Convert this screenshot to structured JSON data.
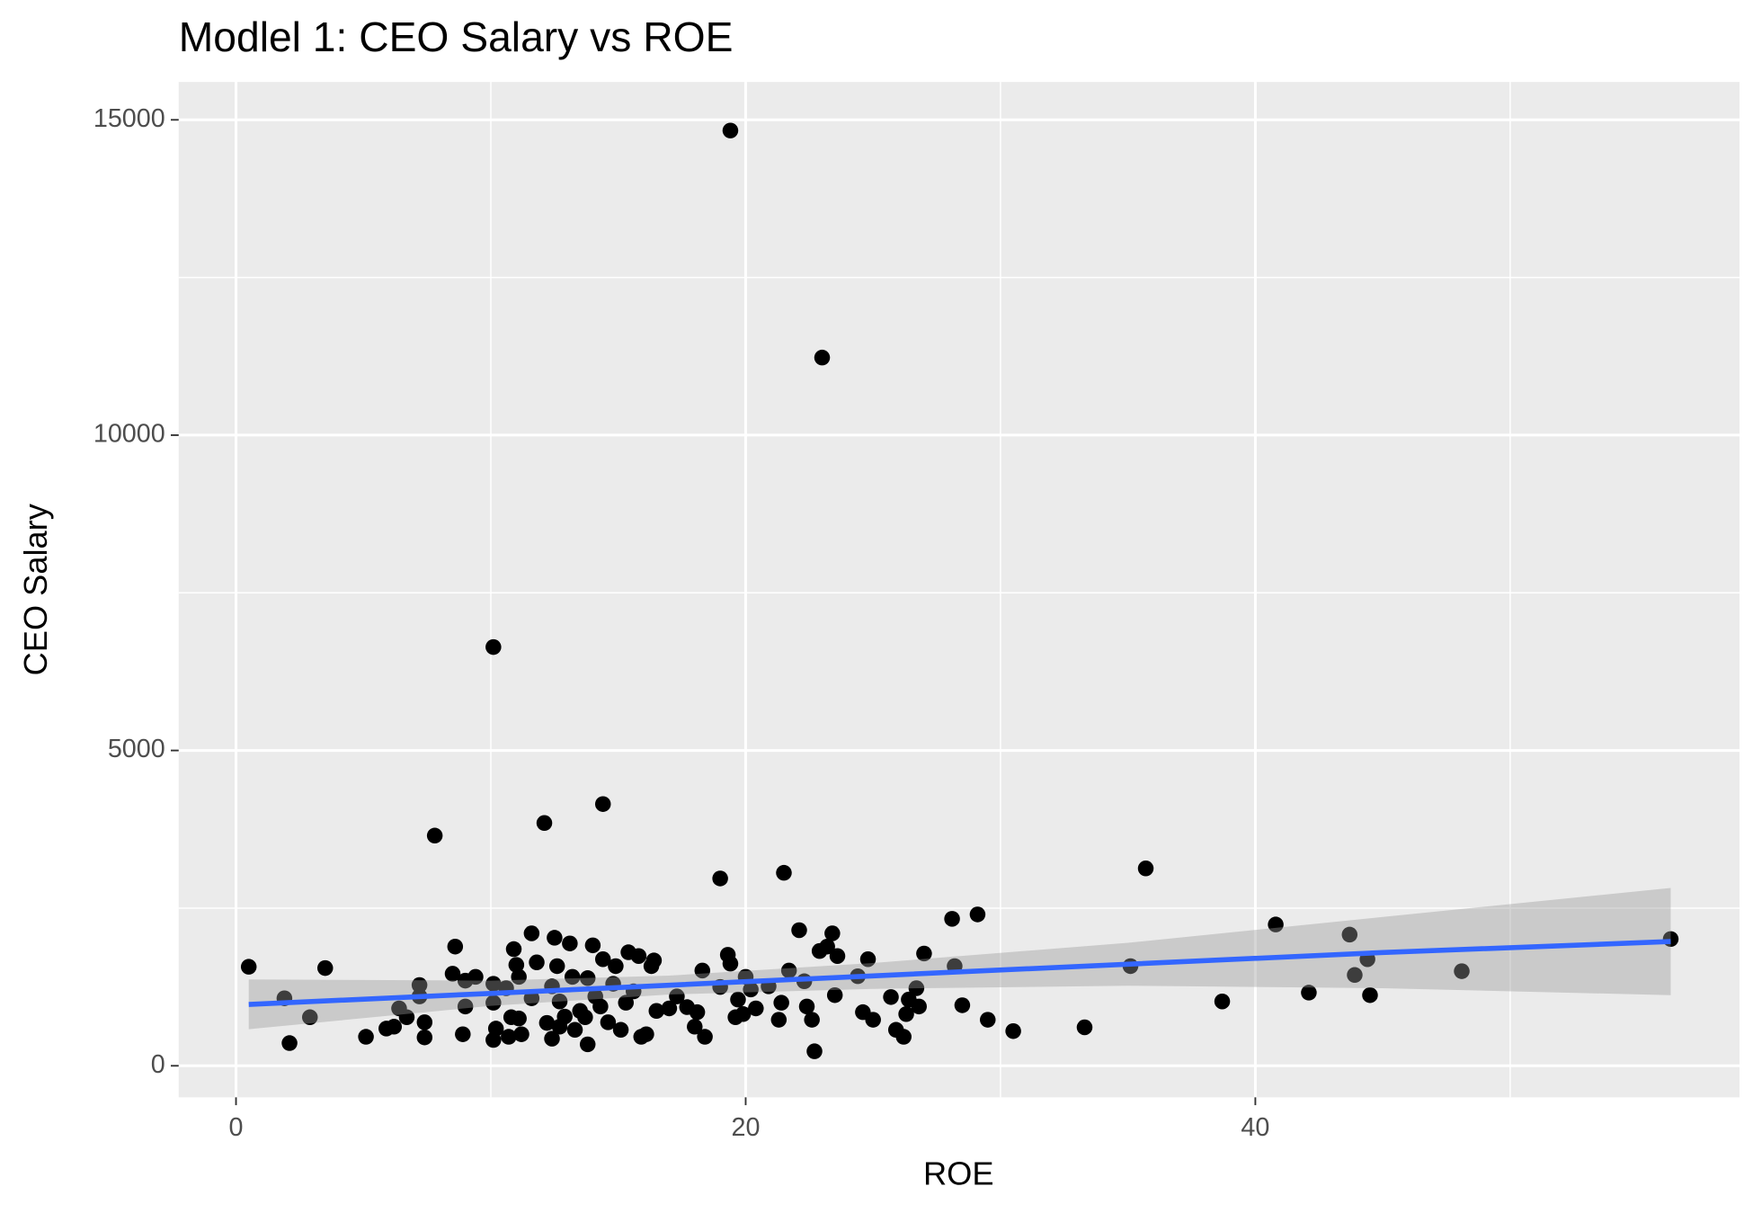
{
  "chart_data": {
    "type": "scatter",
    "title": "Modlel 1: CEO Salary vs ROE",
    "x_label": "ROE",
    "y_label": "CEO Salary",
    "xlim": [
      -2.25,
      59.0
    ],
    "ylim": [
      -500,
      15600
    ],
    "xticks": [
      0,
      20,
      40
    ],
    "yticks": [
      0,
      5000,
      10000,
      15000
    ],
    "grid": true,
    "color": "#000000",
    "x": [
      0.5,
      1.9,
      2.1,
      2.9,
      3.5,
      5.1,
      5.9,
      6.2,
      6.4,
      6.7,
      7.2,
      7.2,
      7.4,
      7.4,
      7.8,
      8.5,
      8.6,
      8.9,
      9.0,
      9.0,
      9.4,
      10.1,
      10.1,
      10.1,
      10.1,
      10.2,
      10.6,
      10.7,
      10.8,
      10.9,
      11.0,
      11.1,
      11.1,
      11.2,
      11.6,
      11.6,
      11.8,
      12.1,
      12.2,
      12.4,
      12.4,
      12.5,
      12.6,
      12.7,
      12.7,
      12.9,
      13.1,
      13.2,
      13.3,
      13.5,
      13.7,
      13.8,
      13.8,
      14.0,
      14.1,
      14.3,
      14.4,
      14.4,
      14.6,
      14.8,
      14.9,
      15.1,
      15.3,
      15.4,
      15.6,
      15.8,
      15.9,
      16.1,
      16.3,
      16.4,
      16.5,
      17.0,
      17.3,
      17.7,
      18.0,
      18.1,
      18.3,
      18.4,
      19.0,
      19.0,
      19.3,
      19.4,
      19.4,
      19.6,
      19.7,
      19.9,
      20.0,
      20.2,
      20.4,
      20.9,
      21.3,
      21.4,
      21.5,
      21.7,
      22.1,
      22.3,
      22.4,
      22.6,
      22.7,
      22.9,
      23.0,
      23.2,
      23.4,
      23.5,
      23.6,
      24.4,
      24.6,
      24.8,
      25.0,
      25.7,
      25.9,
      26.2,
      26.3,
      26.4,
      26.7,
      26.8,
      27.0,
      28.1,
      28.2,
      28.5,
      29.1,
      29.5,
      30.5,
      33.3,
      35.1,
      35.7,
      38.7,
      40.8,
      42.1,
      43.7,
      43.9,
      44.4,
      44.5,
      48.1,
      56.3
    ],
    "values": [
      1570,
      1070,
      360,
      770,
      1550,
      460,
      590,
      620,
      910,
      770,
      1280,
      1100,
      690,
      450,
      3650,
      1460,
      1890,
      500,
      1350,
      940,
      1410,
      1300,
      1000,
      6640,
      410,
      590,
      1230,
      460,
      770,
      1850,
      1600,
      1410,
      750,
      500,
      2100,
      1070,
      1640,
      3850,
      680,
      1260,
      430,
      2030,
      1580,
      1020,
      620,
      780,
      1940,
      1410,
      570,
      870,
      770,
      340,
      1390,
      1910,
      1100,
      940,
      4150,
      1690,
      690,
      1300,
      1580,
      570,
      1000,
      1800,
      1180,
      1740,
      460,
      500,
      1580,
      1670,
      870,
      910,
      1100,
      930,
      620,
      850,
      1510,
      460,
      2970,
      1250,
      1760,
      14830,
      1620,
      770,
      1050,
      820,
      1410,
      1210,
      910,
      1260,
      730,
      1000,
      3060,
      1510,
      2150,
      1340,
      940,
      730,
      230,
      1820,
      11230,
      1890,
      2100,
      1120,
      1740,
      1420,
      850,
      1690,
      730,
      1090,
      570,
      460,
      820,
      1050,
      1230,
      940,
      1780,
      2330,
      1580,
      960,
      2400,
      730,
      550,
      610,
      1580,
      3130,
      1020,
      2240,
      1160,
      2080,
      1440,
      1690,
      1120,
      1500,
      2010
    ],
    "fit": {
      "color": "#3366ff",
      "band_color": "#999999",
      "x": [
        0.5,
        10,
        17,
        25,
        35,
        45,
        56.3
      ],
      "values": [
        973,
        1148,
        1278,
        1426,
        1611,
        1796,
        1970
      ],
      "lower": [
        580,
        950,
        1130,
        1220,
        1270,
        1230,
        1120
      ],
      "upper": [
        1370,
        1350,
        1430,
        1630,
        1950,
        2360,
        2820
      ]
    }
  }
}
